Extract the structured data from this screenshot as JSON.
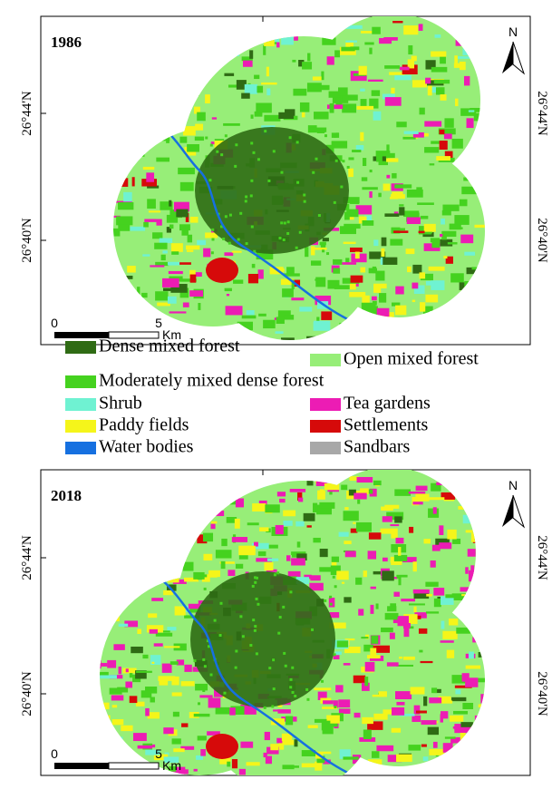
{
  "maps": [
    {
      "year": "1986",
      "north": "N",
      "lat_labels": [
        "26°44'N",
        "26°40'N"
      ],
      "scale": {
        "start": "0",
        "end": "5",
        "unit": "Km"
      }
    },
    {
      "year": "2018",
      "north": "N",
      "lat_labels": [
        "26°44'N",
        "26°40'N"
      ],
      "scale": {
        "start": "0",
        "end": "5",
        "unit": "Km"
      }
    }
  ],
  "legend": [
    {
      "label": "Dense mixed forest",
      "color": "#2f6b14"
    },
    {
      "label": "Open mixed forest",
      "color": "#97ee78"
    },
    {
      "label": "Moderately mixed dense forest",
      "color": "#45d21f"
    },
    {
      "label": "Shrub",
      "color": "#6ff2d2"
    },
    {
      "label": "Tea gardens",
      "color": "#ec1cb4"
    },
    {
      "label": "Paddy fields",
      "color": "#f5f51a"
    },
    {
      "label": "Settlements",
      "color": "#d60a0a"
    },
    {
      "label": "Water bodies",
      "color": "#1670e0"
    },
    {
      "label": "Sandbars",
      "color": "#a8a8a8"
    }
  ]
}
